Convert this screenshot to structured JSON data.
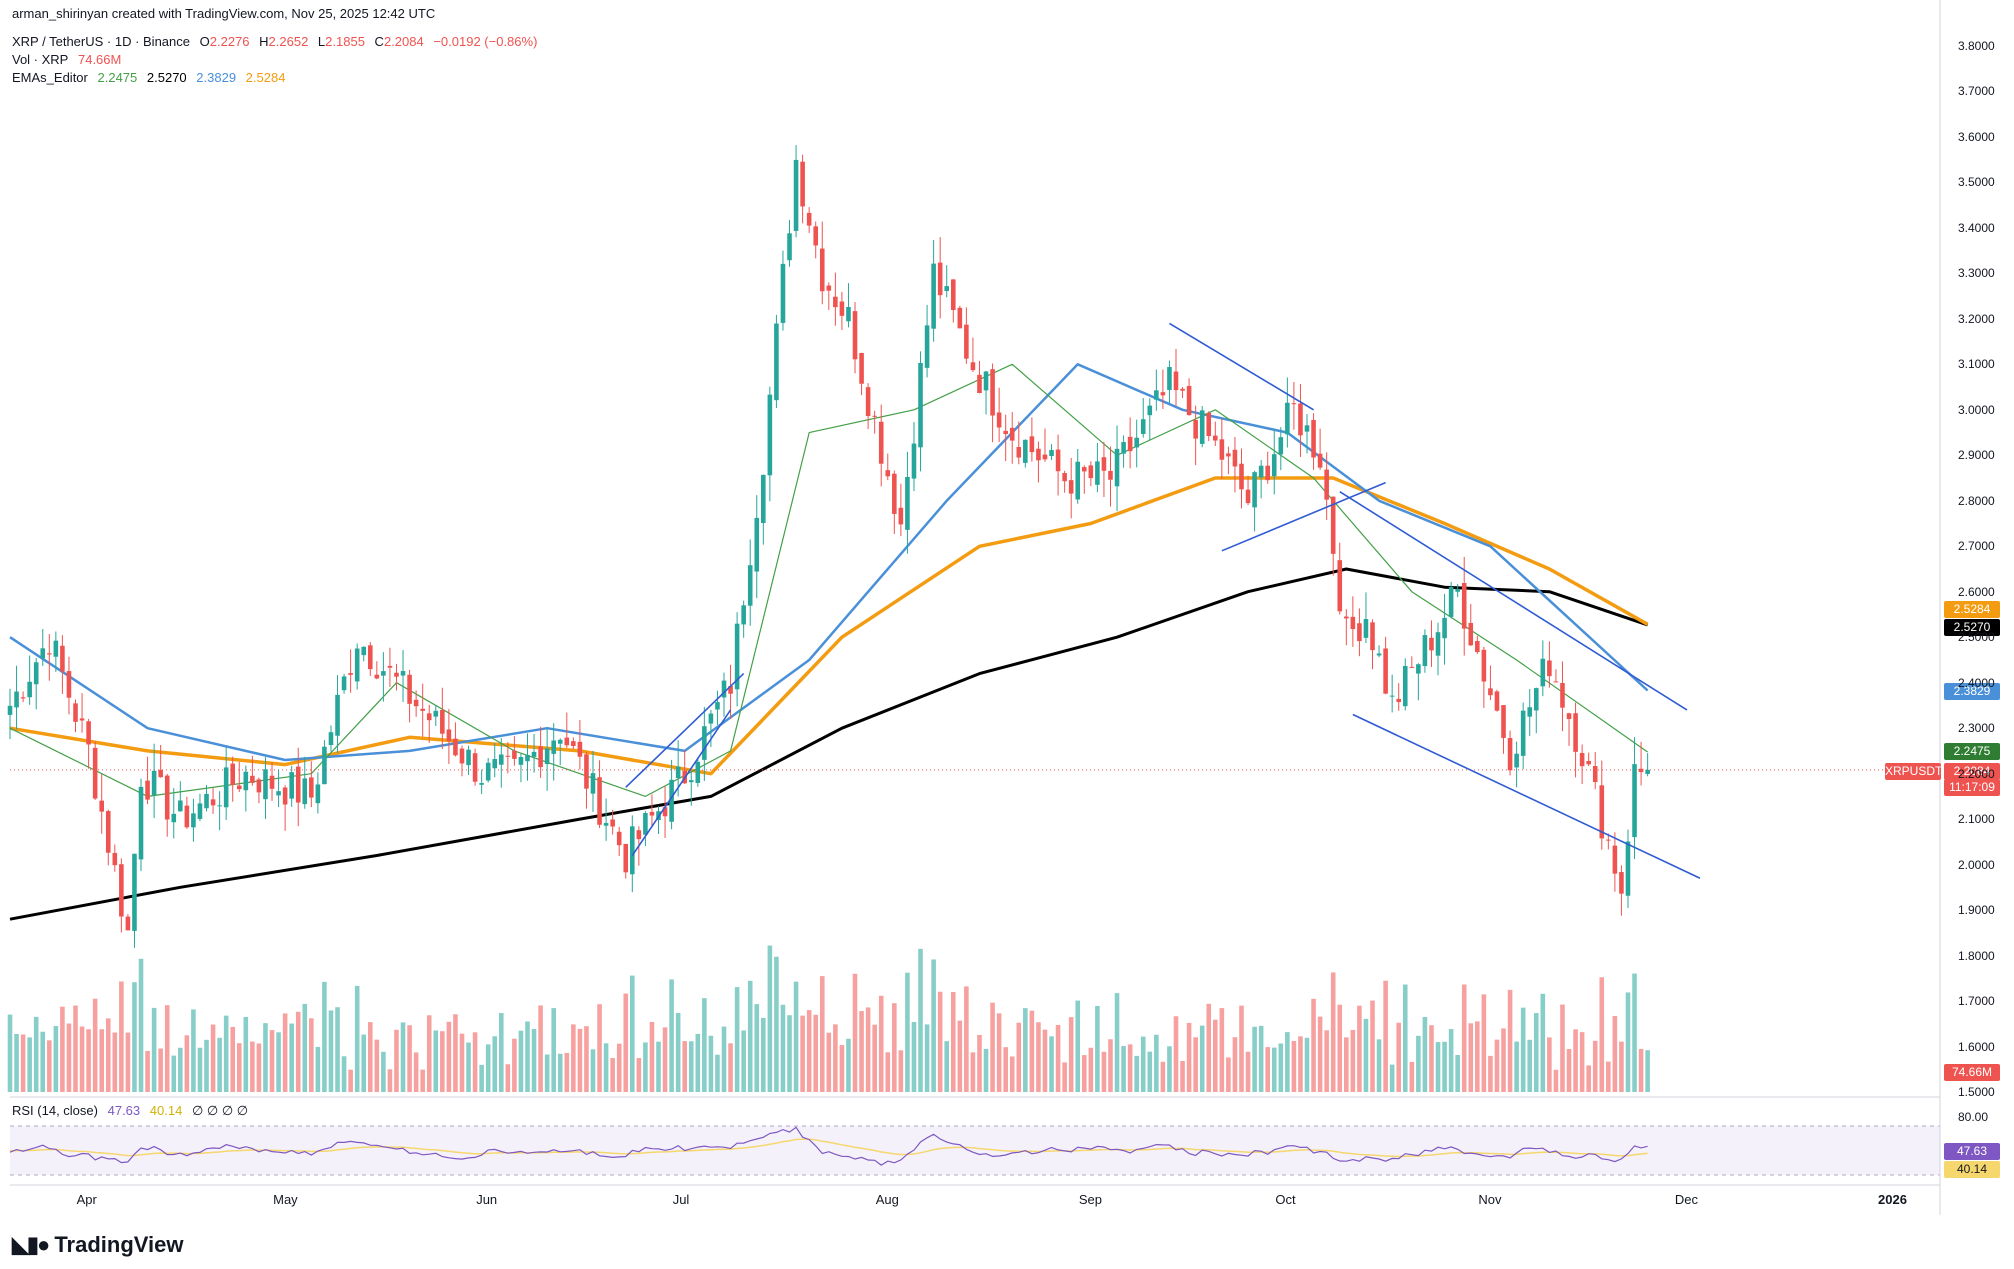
{
  "credit": "arman_shirinyan created with TradingView.com, Nov 25, 2025 12:42 UTC",
  "brand": "TradingView",
  "legend": {
    "symbol": "XRP / TetherUS · 1D · Binance",
    "open_label": "O",
    "open": "2.2276",
    "high_label": "H",
    "high": "2.2652",
    "low_label": "L",
    "low": "2.1855",
    "close_label": "C",
    "close": "2.2084",
    "change": "−0.0192 (−0.86%)",
    "vol_label": "Vol · XRP",
    "vol": "74.66M",
    "ema_label": "EMAs_Editor",
    "ema20": "2.2475",
    "ema200": "2.5270",
    "ema50": "2.3829",
    "ema100": "2.5284",
    "rsi_label": "RSI (14, close)",
    "rsi": "47.63",
    "rsi_ma": "40.14",
    "rsi_extra": "∅ ∅ ∅ ∅"
  },
  "price_tags": {
    "ema100": "2.5284",
    "ema200": "2.5270",
    "ema50": "2.3829",
    "ema20": "2.2475",
    "symbol": "XRPUSDT",
    "last": "2.2084",
    "countdown": "11:17:09",
    "volume": "74.66M",
    "rsi": "47.63",
    "rsi_ma": "40.14"
  },
  "colors": {
    "up": "#26a69a",
    "down": "#ef5350",
    "ema20": "#43a047",
    "ema50": "#4a90d9",
    "ema100": "#f39c12",
    "ema200": "#000000",
    "trend": "#2f5bd3",
    "rsi": "#7e57c2",
    "rsi_ma": "#f5d76e"
  },
  "chart_data": {
    "type": "candlestick",
    "timeframe": "1D",
    "y_ticks": [
      "3.8000",
      "3.7000",
      "3.6000",
      "3.5000",
      "3.4000",
      "3.3000",
      "3.2000",
      "3.1000",
      "3.0000",
      "2.9000",
      "2.8000",
      "2.7000",
      "2.6000",
      "2.5000",
      "2.4000",
      "2.3000",
      "2.2000",
      "2.1000",
      "2.0000",
      "1.9000",
      "1.8000",
      "1.7000",
      "1.6000",
      "1.5000"
    ],
    "ylim": [
      1.5,
      3.8
    ],
    "x_ticks": [
      "Apr",
      "May",
      "Jun",
      "Jul",
      "Aug",
      "Sep",
      "Oct",
      "Nov",
      "Dec",
      "2026"
    ],
    "rsi_ticks": [
      "80.00"
    ],
    "anchors": [
      [
        "2025-03-20",
        2.35
      ],
      [
        "2025-03-26",
        2.5
      ],
      [
        "2025-04-01",
        2.25
      ],
      [
        "2025-04-07",
        1.85
      ],
      [
        "2025-04-09",
        2.2
      ],
      [
        "2025-04-15",
        2.1
      ],
      [
        "2025-04-25",
        2.2
      ],
      [
        "2025-05-05",
        2.15
      ],
      [
        "2025-05-12",
        2.5
      ],
      [
        "2025-05-18",
        2.4
      ],
      [
        "2025-05-31",
        2.2
      ],
      [
        "2025-06-05",
        2.2
      ],
      [
        "2025-06-12",
        2.3
      ],
      [
        "2025-06-22",
        2.02
      ],
      [
        "2025-07-01",
        2.2
      ],
      [
        "2025-07-08",
        2.4
      ],
      [
        "2025-07-13",
        2.9
      ],
      [
        "2025-07-18",
        3.55
      ],
      [
        "2025-07-22",
        3.3
      ],
      [
        "2025-07-26",
        3.2
      ],
      [
        "2025-08-03",
        2.75
      ],
      [
        "2025-08-08",
        3.3
      ],
      [
        "2025-08-14",
        3.1
      ],
      [
        "2025-08-20",
        2.95
      ],
      [
        "2025-08-28",
        2.85
      ],
      [
        "2025-09-04",
        2.85
      ],
      [
        "2025-09-13",
        3.05
      ],
      [
        "2025-09-21",
        2.9
      ],
      [
        "2025-09-25",
        2.8
      ],
      [
        "2025-10-02",
        3.0
      ],
      [
        "2025-10-06",
        2.9
      ],
      [
        "2025-10-10",
        2.5
      ],
      [
        "2025-10-13",
        2.55
      ],
      [
        "2025-10-17",
        2.35
      ],
      [
        "2025-10-27",
        2.6
      ],
      [
        "2025-11-04",
        2.25
      ],
      [
        "2025-11-10",
        2.45
      ],
      [
        "2025-11-15",
        2.25
      ],
      [
        "2025-11-21",
        1.95
      ],
      [
        "2025-11-23",
        2.2
      ],
      [
        "2025-11-25",
        2.2084
      ]
    ],
    "ema20": [
      [
        "2025-03-20",
        2.3
      ],
      [
        "2025-04-10",
        2.15
      ],
      [
        "2025-05-05",
        2.2
      ],
      [
        "2025-05-18",
        2.4
      ],
      [
        "2025-06-05",
        2.25
      ],
      [
        "2025-06-25",
        2.15
      ],
      [
        "2025-07-08",
        2.25
      ],
      [
        "2025-07-20",
        2.95
      ],
      [
        "2025-08-05",
        3.0
      ],
      [
        "2025-08-20",
        3.1
      ],
      [
        "2025-09-05",
        2.9
      ],
      [
        "2025-09-20",
        3.0
      ],
      [
        "2025-10-05",
        2.85
      ],
      [
        "2025-10-20",
        2.6
      ],
      [
        "2025-11-05",
        2.45
      ],
      [
        "2025-11-25",
        2.2475
      ]
    ],
    "ema50": [
      [
        "2025-03-20",
        2.5
      ],
      [
        "2025-04-10",
        2.3
      ],
      [
        "2025-05-01",
        2.23
      ],
      [
        "2025-05-20",
        2.25
      ],
      [
        "2025-06-10",
        2.3
      ],
      [
        "2025-07-01",
        2.25
      ],
      [
        "2025-07-20",
        2.45
      ],
      [
        "2025-08-10",
        2.8
      ],
      [
        "2025-08-30",
        3.1
      ],
      [
        "2025-09-15",
        3.0
      ],
      [
        "2025-10-01",
        2.95
      ],
      [
        "2025-10-15",
        2.8
      ],
      [
        "2025-11-01",
        2.7
      ],
      [
        "2025-11-25",
        2.3829
      ]
    ],
    "ema100": [
      [
        "2025-03-20",
        2.3
      ],
      [
        "2025-04-10",
        2.25
      ],
      [
        "2025-05-01",
        2.22
      ],
      [
        "2025-05-20",
        2.28
      ],
      [
        "2025-06-15",
        2.25
      ],
      [
        "2025-07-05",
        2.2
      ],
      [
        "2025-07-25",
        2.5
      ],
      [
        "2025-08-15",
        2.7
      ],
      [
        "2025-09-01",
        2.75
      ],
      [
        "2025-09-20",
        2.85
      ],
      [
        "2025-10-08",
        2.85
      ],
      [
        "2025-10-25",
        2.75
      ],
      [
        "2025-11-10",
        2.65
      ],
      [
        "2025-11-25",
        2.5284
      ]
    ],
    "ema200": [
      [
        "2025-03-20",
        1.88
      ],
      [
        "2025-04-15",
        1.95
      ],
      [
        "2025-05-15",
        2.02
      ],
      [
        "2025-06-15",
        2.1
      ],
      [
        "2025-07-05",
        2.15
      ],
      [
        "2025-07-25",
        2.3
      ],
      [
        "2025-08-15",
        2.42
      ],
      [
        "2025-09-05",
        2.5
      ],
      [
        "2025-09-25",
        2.6
      ],
      [
        "2025-10-10",
        2.65
      ],
      [
        "2025-10-25",
        2.61
      ],
      [
        "2025-11-10",
        2.6
      ],
      [
        "2025-11-25",
        2.527
      ]
    ],
    "trendlines": [
      [
        [
          "2025-06-22",
          2.17
        ],
        [
          "2025-07-10",
          2.42
        ]
      ],
      [
        [
          "2025-06-23",
          2.02
        ],
        [
          "2025-07-08",
          2.34
        ]
      ],
      [
        [
          "2025-09-13",
          3.19
        ],
        [
          "2025-10-05",
          3.0
        ]
      ],
      [
        [
          "2025-09-21",
          2.69
        ],
        [
          "2025-10-16",
          2.84
        ]
      ],
      [
        [
          "2025-10-09",
          2.82
        ],
        [
          "2025-12-01",
          2.34
        ]
      ],
      [
        [
          "2025-10-11",
          2.33
        ],
        [
          "2025-12-03",
          1.97
        ]
      ]
    ],
    "rsi": {
      "last": 47.63,
      "ma_last": 40.14,
      "overbought": 70,
      "oversold": 30
    }
  }
}
